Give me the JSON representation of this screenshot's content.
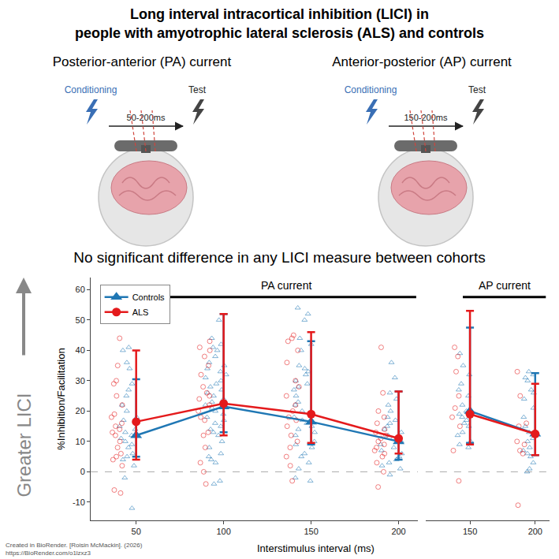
{
  "header": {
    "title": [
      "Long interval intracortical inhibition (LICI) in",
      "people with amyotrophic lateral sclerosis (ALS) and controls"
    ],
    "protocols": [
      {
        "heading": "Posterior-anterior (PA) current",
        "conditioning": "Conditioning",
        "test": "Test",
        "interval": "50-200ms"
      },
      {
        "heading": "Anterior-posterior (AP) current",
        "conditioning": "Conditioning",
        "test": "Test",
        "interval": "150-200ms"
      }
    ],
    "conclusion": "No significant difference in any LICI measure between cohorts"
  },
  "credit": [
    "Created in BioRender. [Roisin McMackin]. (2026)",
    "https://BioRender.com/o1lzxz3"
  ],
  "chart_data": {
    "type": "scatter",
    "y_label": "%Inhibition/Facilitation",
    "x_label": "Interstimulus interval (ms)",
    "arrow_label": "Greater LICI",
    "ylim": [
      -16,
      64
    ],
    "yticks": [
      -10,
      0,
      10,
      20,
      30,
      40,
      50,
      60
    ],
    "reference_line": 0,
    "grid": false,
    "legend": "upper left",
    "panels": [
      {
        "title": "PA current",
        "xlim": [
          24,
          211
        ],
        "xticks": [
          50,
          100,
          150,
          200
        ],
        "x": [
          50,
          100,
          150,
          200
        ],
        "series": [
          {
            "name": "Controls",
            "color": "#1f77b4",
            "marker": "triangle",
            "values": [
              12,
              21.5,
              16.5,
              10
            ],
            "error_low": [
              5,
              13,
              9,
              4
            ],
            "error_high": [
              30.5,
              52,
              43,
              26.5
            ],
            "points": [
              [
                41,
                40,
                36,
                34,
                29,
                27,
                25,
                22,
                20,
                18,
                17,
                15,
                14,
                13,
                12,
                11,
                10,
                9,
                8,
                6,
                5,
                4,
                2,
                -2,
                -12
              ],
              [
                50,
                44,
                42,
                41,
                40,
                38,
                36,
                35,
                34,
                33,
                32,
                31,
                30,
                29,
                28,
                27,
                26,
                25,
                24,
                23,
                22,
                21,
                20,
                19,
                18,
                17,
                16,
                15,
                14,
                13,
                12,
                10,
                8,
                6,
                5,
                4,
                3,
                -3,
                -4
              ],
              [
                54,
                52,
                50,
                44,
                42,
                40,
                35,
                34,
                33,
                32,
                30,
                29,
                28,
                27,
                25,
                23,
                22,
                20,
                18,
                17,
                16,
                15,
                14,
                13,
                12,
                10,
                9,
                8,
                6,
                5,
                3,
                1,
                -2,
                -3
              ],
              [
                36,
                31,
                26,
                24,
                22,
                20,
                18,
                17,
                16,
                15,
                14,
                13,
                12,
                11,
                10,
                9,
                8,
                7,
                6,
                5,
                4,
                3,
                2,
                1,
                -1
              ]
            ]
          },
          {
            "name": "ALS",
            "color": "#e41a1c",
            "marker": "circle",
            "values": [
              16.5,
              22.5,
              19,
              11
            ],
            "error_low": [
              4,
              12,
              9.5,
              6
            ],
            "error_high": [
              40,
              52,
              46,
              26.5
            ],
            "points": [
              [
                44,
                35,
                30,
                29,
                25,
                22,
                19,
                18,
                16,
                15,
                14,
                13,
                12,
                10,
                8,
                6,
                5,
                4,
                2,
                -6,
                -7
              ],
              [
                43,
                41,
                40,
                38,
                35,
                32,
                28,
                26,
                25,
                24,
                22,
                20,
                18,
                17,
                13,
                12,
                8,
                3,
                0,
                -4
              ],
              [
                45,
                44,
                43,
                40,
                36,
                30,
                28,
                25,
                22,
                20,
                18,
                17,
                15,
                12,
                10,
                8,
                5,
                2,
                -3
              ],
              [
                41,
                26,
                20,
                18,
                16,
                14,
                13,
                12,
                11,
                10,
                9,
                8,
                7,
                6,
                5,
                3,
                0,
                -5
              ]
            ]
          }
        ]
      },
      {
        "title": "AP current",
        "xlim": [
          116,
          211
        ],
        "xticks": [
          150,
          200
        ],
        "x": [
          150,
          200
        ],
        "series": [
          {
            "name": "Controls",
            "color": "#1f77b4",
            "marker": "triangle",
            "values": [
              20,
              12.5
            ],
            "error_low": [
              9.5,
              5.5
            ],
            "error_high": [
              47.5,
              32.5
            ],
            "points": [
              [
                39,
                35,
                32,
                29,
                27,
                25,
                22,
                20,
                19,
                18,
                17,
                16,
                15,
                13,
                12,
                10,
                9,
                8
              ],
              [
                33,
                32,
                31,
                30,
                27,
                26,
                24,
                21,
                18,
                15,
                13,
                11,
                10,
                8,
                7,
                6,
                5,
                3,
                1,
                0
              ]
            ]
          },
          {
            "name": "ALS",
            "color": "#e41a1c",
            "marker": "circle",
            "values": [
              19,
              12.5
            ],
            "error_low": [
              9,
              5.5
            ],
            "error_high": [
              53,
              29
            ],
            "points": [
              [
                41,
                38,
                33,
                25,
                21,
                18,
                15,
                7,
                -3
              ],
              [
                33,
                25,
                16,
                15,
                10,
                9,
                7,
                6,
                -11
              ]
            ]
          }
        ]
      }
    ]
  }
}
